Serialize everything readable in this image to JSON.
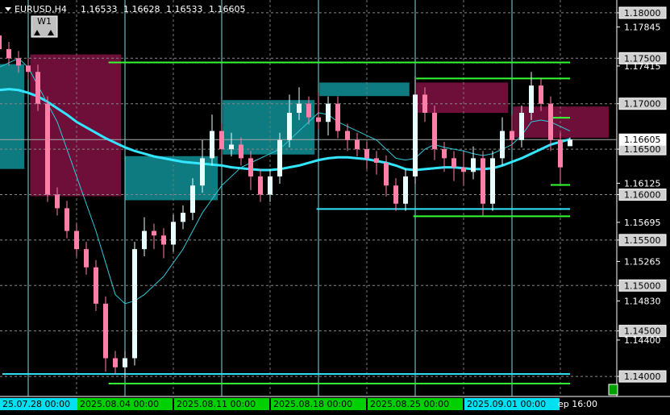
{
  "chart_data": {
    "type": "candlestick",
    "title": "EURUSD,H4",
    "header_values": [
      1.16533,
      1.16628,
      1.16533,
      1.16605
    ],
    "timeframe_button": "W1",
    "categories": [
      null,
      null,
      null,
      "25.07.28 00:00",
      null,
      null,
      null,
      null,
      null,
      null,
      null,
      null,
      null,
      "2025.08.04 00:00",
      null,
      null,
      null,
      null,
      null,
      null,
      null,
      null,
      null,
      "2025.08.11 00:00",
      null,
      null,
      null,
      null,
      null,
      null,
      null,
      null,
      null,
      "2025.08.18 00:00",
      null,
      null,
      null,
      null,
      null,
      null,
      null,
      null,
      null,
      "2025.08.25 00:00",
      null,
      null,
      null,
      null,
      null,
      null,
      null,
      null,
      null,
      "2025.09.01 00:00",
      null,
      null,
      null,
      null,
      null,
      "ep 16:00"
    ],
    "label_colors": [
      null,
      null,
      null,
      "#00e0f0",
      null,
      null,
      null,
      null,
      null,
      null,
      null,
      null,
      null,
      "#00d000",
      null,
      null,
      null,
      null,
      null,
      null,
      null,
      null,
      null,
      "#00d000",
      null,
      null,
      null,
      null,
      null,
      null,
      null,
      null,
      null,
      "#00d000",
      null,
      null,
      null,
      null,
      null,
      null,
      null,
      null,
      null,
      "#00d000",
      null,
      null,
      null,
      null,
      null,
      null,
      null,
      null,
      null,
      "#00e0f0",
      null,
      null,
      null,
      null,
      null,
      null
    ],
    "open": [
      1.1775,
      1.176,
      1.175,
      1.1742,
      1.1735,
      1.17,
      1.16,
      1.1585,
      1.156,
      1.154,
      1.152,
      1.148,
      1.142,
      1.141,
      1.142,
      1.154,
      1.156,
      1.1555,
      1.1545,
      1.157,
      1.158,
      1.161,
      1.164,
      1.167,
      1.165,
      1.1655,
      1.164,
      1.162,
      1.16,
      1.162,
      1.166,
      1.169,
      1.17,
      1.1685,
      1.168,
      1.17,
      1.167,
      1.166,
      1.165,
      1.164,
      1.1635,
      1.161,
      1.159,
      1.162,
      1.171,
      1.169,
      1.165,
      1.164,
      1.163,
      1.1625,
      1.164,
      1.159,
      1.164,
      1.167,
      1.166,
      1.169,
      1.172,
      1.17,
      1.166,
      1.16533
    ],
    "high": [
      1.1783,
      1.1768,
      1.1758,
      1.175,
      1.1743,
      1.1708,
      1.1608,
      1.1593,
      1.1568,
      1.1548,
      1.1528,
      1.1488,
      1.1428,
      1.1428,
      1.1548,
      1.1575,
      1.1568,
      1.1563,
      1.1578,
      1.1588,
      1.1618,
      1.166,
      1.1688,
      1.1678,
      1.1668,
      1.1663,
      1.1648,
      1.1628,
      1.1628,
      1.1668,
      1.171,
      1.1718,
      1.1708,
      1.1712,
      1.1708,
      1.1708,
      1.1678,
      1.1668,
      1.1658,
      1.1648,
      1.1643,
      1.1618,
      1.1628,
      1.173,
      1.1718,
      1.1698,
      1.1658,
      1.1648,
      1.1648,
      1.1653,
      1.1648,
      1.1648,
      1.1685,
      1.1688,
      1.1698,
      1.1735,
      1.1728,
      1.1708,
      1.1668,
      1.16628
    ],
    "low": [
      1.1752,
      1.1742,
      1.1734,
      1.1727,
      1.1692,
      1.1592,
      1.1577,
      1.1552,
      1.1532,
      1.1512,
      1.1472,
      1.1405,
      1.1402,
      1.1398,
      1.1412,
      1.1532,
      1.154,
      1.153,
      1.1537,
      1.1562,
      1.1572,
      1.1602,
      1.1632,
      1.1642,
      1.1642,
      1.1632,
      1.1605,
      1.1592,
      1.1592,
      1.1612,
      1.1652,
      1.1682,
      1.1677,
      1.1672,
      1.1665,
      1.1662,
      1.1648,
      1.1642,
      1.1628,
      1.1622,
      1.1598,
      1.1582,
      1.1582,
      1.1612,
      1.168,
      1.1638,
      1.1625,
      1.1615,
      1.161,
      1.1617,
      1.1577,
      1.1582,
      1.1632,
      1.1652,
      1.1652,
      1.1682,
      1.1692,
      1.1648,
      1.1612,
      1.16533
    ],
    "close": [
      1.176,
      1.175,
      1.1742,
      1.1735,
      1.17,
      1.16,
      1.1585,
      1.156,
      1.154,
      1.152,
      1.148,
      1.142,
      1.141,
      1.142,
      1.154,
      1.156,
      1.1555,
      1.1545,
      1.157,
      1.158,
      1.161,
      1.164,
      1.167,
      1.165,
      1.1655,
      1.164,
      1.162,
      1.16,
      1.162,
      1.166,
      1.169,
      1.17,
      1.1685,
      1.168,
      1.17,
      1.167,
      1.166,
      1.165,
      1.164,
      1.1635,
      1.161,
      1.159,
      1.162,
      1.171,
      1.169,
      1.165,
      1.164,
      1.163,
      1.1625,
      1.164,
      1.159,
      1.164,
      1.167,
      1.166,
      1.169,
      1.172,
      1.17,
      1.166,
      1.163,
      1.16605
    ],
    "up_color": "#e8ffff",
    "down_color": "#ff7fa8",
    "moving_averages": [
      {
        "color": "#33e6ff",
        "values": [
          1.1715,
          1.1716,
          1.1715,
          1.1712,
          1.1708,
          1.1702,
          1.1695,
          1.1688,
          1.168,
          1.1674,
          1.1668,
          1.1662,
          1.1657,
          1.1652,
          1.1648,
          1.1645,
          1.1642,
          1.164,
          1.1638,
          1.1636,
          1.1635,
          1.1634,
          1.1633,
          1.1632,
          1.163,
          1.1629,
          1.1628,
          1.1627,
          1.1627,
          1.1628,
          1.163,
          1.1632,
          1.1635,
          1.1638,
          1.164,
          1.1641,
          1.1641,
          1.164,
          1.1639,
          1.1637,
          1.1635,
          1.1632,
          1.1628,
          1.1627,
          1.1628,
          1.1629,
          1.163,
          1.163,
          1.1629,
          1.1628,
          1.1628,
          1.1629,
          1.1632,
          1.1636,
          1.164,
          1.1645,
          1.165,
          1.1655,
          1.1658,
          1.1661
        ]
      },
      {
        "color": "#2fc8d8",
        "values": [
          1.174,
          1.1745,
          1.175,
          1.174,
          1.172,
          1.17,
          1.168,
          1.165,
          1.162,
          1.159,
          1.156,
          1.1525,
          1.149,
          1.148,
          1.1483,
          1.149,
          1.15,
          1.151,
          1.1525,
          1.154,
          1.156,
          1.158,
          1.1595,
          1.161,
          1.162,
          1.163,
          1.1635,
          1.164,
          1.1645,
          1.165,
          1.166,
          1.167,
          1.168,
          1.169,
          1.1688,
          1.168,
          1.1675,
          1.167,
          1.1665,
          1.166,
          1.165,
          1.164,
          1.1638,
          1.164,
          1.165,
          1.1655,
          1.1652,
          1.165,
          1.1648,
          1.1645,
          1.1643,
          1.1645,
          1.165,
          1.1655,
          1.1665,
          1.168,
          1.1682,
          1.168,
          1.1675,
          1.167
        ]
      }
    ],
    "zones": [
      {
        "start": 0,
        "end": 2.6,
        "top": 1.17436,
        "bottom": 1.16282,
        "color": "#0e7b80"
      },
      {
        "start": 3.2,
        "end": 12.6,
        "top": 1.17542,
        "bottom": 1.15982,
        "color": "#6e0f3a"
      },
      {
        "start": 13,
        "end": 22.6,
        "top": 1.16423,
        "bottom": 1.15938,
        "color": "#0e7b80"
      },
      {
        "start": 23.1,
        "end": 32.6,
        "top": 1.1704,
        "bottom": 1.16441,
        "color": "#0e7b80"
      },
      {
        "start": 33.1,
        "end": 42.4,
        "top": 1.17233,
        "bottom": 1.17084,
        "color": "#0e7b80"
      },
      {
        "start": 43.1,
        "end": 52.6,
        "top": 1.17233,
        "bottom": 1.16899,
        "color": "#6e0f3a"
      },
      {
        "start": 53.1,
        "end": 63,
        "top": 1.16969,
        "bottom": 1.16626,
        "color": "#6e0f3a"
      }
    ],
    "levels": [
      {
        "price": 1.17454,
        "start": 11.3,
        "color": "#33ff33"
      },
      {
        "price": 1.17278,
        "start": 43.1,
        "color": "#33ff33"
      },
      {
        "price": 1.16846,
        "start": 57,
        "color": "#33ff33"
      },
      {
        "price": 1.16106,
        "start": 57,
        "color": "#33ff33"
      },
      {
        "price": 1.15841,
        "start": 32.8,
        "color": "#33e6ff"
      },
      {
        "price": 1.15762,
        "start": 42.8,
        "color": "#33ff33"
      },
      {
        "price": 1.14026,
        "start": 0,
        "color": "#33e6ff"
      },
      {
        "price": 1.13921,
        "start": 11.3,
        "color": "#33ff33"
      }
    ],
    "ylim": [
      1.13779,
      1.18141
    ],
    "yticks": [
      {
        "value": 1.18,
        "label": "1.18000"
      },
      {
        "value": 1.175,
        "label": "1.17500"
      },
      {
        "value": 1.17,
        "label": "1.17000"
      },
      {
        "value": 1.165,
        "label": "1.16500"
      },
      {
        "value": 1.16,
        "label": "1.16000"
      },
      {
        "value": 1.155,
        "label": "1.15500"
      },
      {
        "value": 1.15,
        "label": "1.15000"
      },
      {
        "value": 1.145,
        "label": "1.14500"
      },
      {
        "value": 1.14,
        "label": "1.14000"
      }
    ],
    "price_labels": [
      1.17845,
      1.17415,
      1.16125,
      1.15695,
      1.15265,
      {
        "value": 1.1483,
        "label": "1.14830"
      },
      {
        "value": 1.144,
        "label": "1.14400"
      }
    ],
    "current_price": {
      "value": 1.16605,
      "label": "1.16605"
    },
    "grid": true
  }
}
